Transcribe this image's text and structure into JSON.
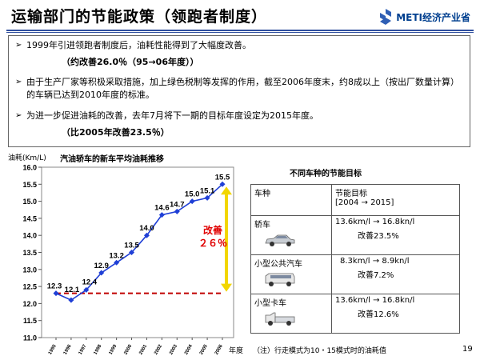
{
  "header": {
    "title": "运输部门的节能政策（领跑者制度）",
    "logo_text": "METI经济产业省"
  },
  "bullets": [
    {
      "text": "1999年引进领跑者制度后，油耗性能得到了大幅度改善。",
      "sub": "（约改善26.0％（95→06年度））"
    },
    {
      "text": "由于生产厂家等积极采取措施，加上绿色税制等发挥的作用，截至2006年度末，约8成以上（按出厂数量计算）的车辆已达到2010年度的标准。"
    },
    {
      "text": "为进一步促进油耗的改善，去年7月将下一期的目标年度设定为2015年度。",
      "sub": "（比2005年改善23.5％）"
    }
  ],
  "chart_data": {
    "type": "line",
    "title": "汽油轿车的新车平均油耗推移",
    "ylabel": "油耗(Km/L)",
    "xlabel": "年度",
    "ylim": [
      11.0,
      16.0
    ],
    "yticks": [
      "11.0",
      "11.5",
      "12.0",
      "12.5",
      "13.0",
      "13.5",
      "14.0",
      "14.5",
      "15.0",
      "15.5",
      "16.0"
    ],
    "x": [
      "1995",
      "1996",
      "1997",
      "1998",
      "1999",
      "2000",
      "2001",
      "2002",
      "2003",
      "2004",
      "2005",
      "2006"
    ],
    "values": [
      12.3,
      12.1,
      12.4,
      12.9,
      13.2,
      13.5,
      14.0,
      14.6,
      14.7,
      15.0,
      15.1,
      15.5
    ],
    "point_labels": [
      "12.3",
      "12.1",
      "12.4",
      "12.9",
      "13.2",
      "13.5",
      "14.0",
      "14.6",
      "14.7",
      "15.0",
      "15.1",
      "15.5"
    ],
    "baseline_value": 12.3,
    "annotation": [
      "改善",
      "２６％"
    ],
    "line_color": "#1f3fd6",
    "baseline_color": "#c00000",
    "arrow_color": "#f2d600"
  },
  "targets": {
    "title": "不同车种的节能目标",
    "headers": [
      "车种",
      "节能目标",
      "[2004 → 2015]"
    ],
    "rows": [
      {
        "type": "轿车",
        "range": "13.6km/l → 16.8kn/l",
        "improve": "改善23.5%",
        "icon": "sedan-icon"
      },
      {
        "type": "小型公共汽车",
        "range": "8.3km/l → 8.9kn/l",
        "improve": "改善7.2%",
        "icon": "minibus-icon"
      },
      {
        "type": "小型卡车",
        "range": "13.6km/l → 16.8kn/l",
        "improve": "改善12.6%",
        "icon": "truck-icon"
      }
    ]
  },
  "footer": {
    "xunit": "年度",
    "note": "（注）行走模式为10・15模式时的油耗值",
    "page": "19"
  }
}
